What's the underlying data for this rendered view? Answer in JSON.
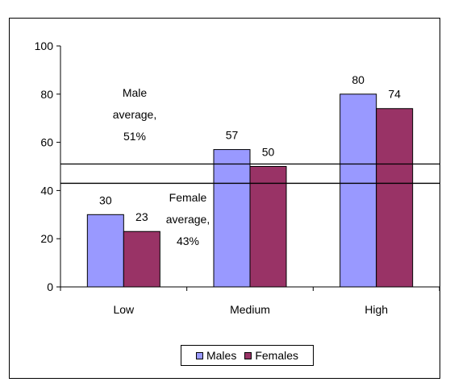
{
  "chart_data": {
    "type": "bar",
    "title": "",
    "xlabel": "",
    "ylabel": "",
    "categories": [
      "Low",
      "Medium",
      "High"
    ],
    "series": [
      {
        "name": "Males",
        "values": [
          30,
          57,
          80
        ],
        "color": "#9999ff"
      },
      {
        "name": "Females",
        "values": [
          23,
          50,
          74
        ],
        "color": "#993366"
      }
    ],
    "data_labels": [
      [
        "30",
        "57",
        "80"
      ],
      [
        "23",
        "50",
        "74"
      ]
    ],
    "ylim": [
      0,
      100
    ],
    "yticks": [
      0,
      20,
      40,
      60,
      80,
      100
    ],
    "ytick_labels": [
      "0",
      "20",
      "40",
      "60",
      "80",
      "100"
    ],
    "grid": false,
    "legend_position": "bottom",
    "reference_lines": [
      {
        "value": 51,
        "label_lines": [
          "Male",
          "average,",
          "51%"
        ]
      },
      {
        "value": 43,
        "label_lines": [
          "Female",
          "average,",
          "43%"
        ]
      }
    ]
  }
}
